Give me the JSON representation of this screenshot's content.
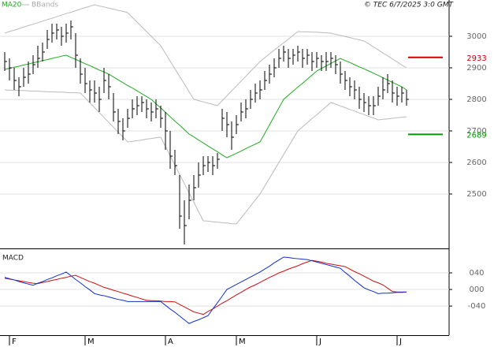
{
  "chart_data": [
    {
      "type": "ohlc",
      "note": "© TEC 6/7/2025 3:0 GMT",
      "categories": [
        null,
        "F",
        null,
        null,
        null,
        null,
        null,
        null,
        null,
        null,
        null,
        null,
        null,
        null,
        null,
        null,
        null,
        "M",
        null,
        null,
        null,
        null,
        null,
        null,
        null,
        null,
        null,
        null,
        null,
        null,
        null,
        null,
        null,
        null,
        "A",
        null,
        null,
        null,
        null,
        null,
        null,
        null,
        null,
        null,
        null,
        null,
        null,
        null,
        null,
        "M",
        null,
        null,
        null,
        null,
        null,
        null,
        null,
        null,
        null,
        null,
        null,
        null,
        null,
        null,
        null,
        null,
        "J",
        null,
        null,
        null,
        null,
        null,
        null,
        null,
        null,
        null,
        null,
        null,
        null,
        null,
        null,
        null,
        null,
        "J",
        null,
        null
      ],
      "high": [
        2950,
        2930,
        2900,
        2870,
        2900,
        2920,
        2940,
        2970,
        2980,
        3020,
        3040,
        3040,
        3030,
        3040,
        3050,
        3010,
        2930,
        2900,
        2860,
        2860,
        2840,
        2900,
        2880,
        2820,
        2770,
        2740,
        2770,
        2800,
        2810,
        2810,
        2800,
        2790,
        2800,
        2780,
        2760,
        2700,
        2640,
        2560,
        2480,
        2530,
        2560,
        2600,
        2620,
        2620,
        2620,
        2630,
        2770,
        2760,
        2730,
        2750,
        2790,
        2800,
        2830,
        2850,
        2860,
        2890,
        2910,
        2930,
        2960,
        2970,
        2960,
        2960,
        2970,
        2960,
        2960,
        2950,
        2950,
        2940,
        2950,
        2950,
        2940,
        2920,
        2890,
        2870,
        2860,
        2840,
        2820,
        2810,
        2810,
        2840,
        2870,
        2880,
        2860,
        2840,
        2840,
        2830
      ],
      "low": [
        2890,
        2860,
        2830,
        2810,
        2840,
        2850,
        2880,
        2900,
        2920,
        2960,
        2980,
        2990,
        2970,
        2980,
        2990,
        2900,
        2850,
        2820,
        2790,
        2790,
        2760,
        2820,
        2800,
        2730,
        2690,
        2670,
        2710,
        2740,
        2750,
        2760,
        2740,
        2730,
        2740,
        2710,
        2640,
        2580,
        2560,
        2390,
        2340,
        2420,
        2480,
        2520,
        2560,
        2570,
        2560,
        2580,
        2700,
        2680,
        2640,
        2690,
        2730,
        2740,
        2770,
        2790,
        2800,
        2830,
        2850,
        2870,
        2900,
        2920,
        2900,
        2910,
        2920,
        2900,
        2910,
        2890,
        2900,
        2890,
        2890,
        2900,
        2880,
        2850,
        2830,
        2810,
        2800,
        2770,
        2760,
        2750,
        2750,
        2780,
        2800,
        2820,
        2790,
        2780,
        2790,
        2780
      ],
      "close": [
        2920,
        2900,
        2860,
        2840,
        2870,
        2880,
        2910,
        2930,
        2950,
        2990,
        3010,
        3020,
        3000,
        3010,
        3030,
        2940,
        2880,
        2850,
        2830,
        2820,
        2800,
        2860,
        2840,
        2760,
        2730,
        2700,
        2740,
        2770,
        2780,
        2790,
        2770,
        2760,
        2770,
        2740,
        2700,
        2620,
        2590,
        2430,
        2400,
        2480,
        2520,
        2560,
        2590,
        2600,
        2590,
        2610,
        2740,
        2720,
        2680,
        2720,
        2760,
        2770,
        2800,
        2820,
        2830,
        2860,
        2880,
        2900,
        2930,
        2950,
        2930,
        2940,
        2950,
        2930,
        2940,
        2920,
        2930,
        2920,
        2920,
        2930,
        2910,
        2880,
        2860,
        2840,
        2830,
        2800,
        2790,
        2780,
        2780,
        2810,
        2830,
        2850,
        2820,
        2810,
        2820,
        2800
      ],
      "color": "#000000",
      "series": [
        {
          "name": "MA20",
          "color": "#22aa22",
          "values": [
            2895,
            2898,
            2902,
            2905,
            2909,
            2912,
            2916,
            2919,
            2923,
            2926,
            2930,
            2933,
            2937,
            2940,
            2933,
            2927,
            2920,
            2913,
            2907,
            2900,
            2893,
            2887,
            2880,
            2871,
            2862,
            2853,
            2844,
            2836,
            2827,
            2818,
            2809,
            2800,
            2786,
            2773,
            2759,
            2745,
            2731,
            2718,
            2704,
            2690,
            2681,
            2671,
            2662,
            2652,
            2643,
            2634,
            2624,
            2615,
            2622,
            2629,
            2636,
            2644,
            2651,
            2658,
            2665,
            2692,
            2719,
            2746,
            2773,
            2800,
            2813,
            2826,
            2839,
            2851,
            2864,
            2877,
            2890,
            2898,
            2906,
            2914,
            2922,
            2930,
            2923,
            2917,
            2910,
            2903,
            2897,
            2890,
            2883,
            2876,
            2869,
            2861,
            2854,
            2847,
            2840,
            2830
          ]
        },
        {
          "name": "BBands",
          "color": "#bbbbbb",
          "upper": [
            3010,
            3015,
            3019,
            3024,
            3029,
            3034,
            3038,
            3043,
            3048,
            3053,
            3057,
            3062,
            3067,
            3072,
            3076,
            3081,
            3086,
            3091,
            3095,
            3100,
            3096,
            3093,
            3089,
            3086,
            3082,
            3079,
            3075,
            3060,
            3045,
            3030,
            3015,
            3000,
            2985,
            2970,
            2946,
            2921,
            2897,
            2873,
            2849,
            2824,
            2800,
            2796,
            2792,
            2788,
            2784,
            2780,
            2796,
            2811,
            2827,
            2842,
            2858,
            2873,
            2889,
            2904,
            2920,
            2932,
            2944,
            2956,
            2968,
            2979,
            2991,
            3003,
            3015,
            3014,
            3014,
            3013,
            3013,
            3012,
            3011,
            3010,
            3006,
            3003,
            2999,
            2996,
            2992,
            2989,
            2985,
            2976,
            2966,
            2957,
            2947,
            2938,
            2928,
            2919,
            2909,
            2900
          ],
          "lower": [
            2830,
            2829,
            2829,
            2828,
            2828,
            2827,
            2826,
            2826,
            2825,
            2824,
            2824,
            2823,
            2823,
            2822,
            2821,
            2821,
            2820,
            2805,
            2789,
            2774,
            2758,
            2743,
            2727,
            2712,
            2696,
            2681,
            2665,
            2667,
            2669,
            2671,
            2674,
            2676,
            2678,
            2680,
            2651,
            2621,
            2592,
            2562,
            2533,
            2503,
            2474,
            2444,
            2415,
            2414,
            2412,
            2411,
            2409,
            2408,
            2406,
            2405,
            2424,
            2443,
            2462,
            2481,
            2500,
            2525,
            2550,
            2575,
            2600,
            2625,
            2650,
            2675,
            2700,
            2713,
            2726,
            2739,
            2751,
            2764,
            2777,
            2790,
            2785,
            2779,
            2774,
            2768,
            2763,
            2757,
            2752,
            2746,
            2741,
            2735,
            2737,
            2738,
            2740,
            2742,
            2743,
            2745
          ]
        }
      ],
      "levels": [
        {
          "value": 2933,
          "color": "#cc0000"
        },
        {
          "value": 2689,
          "color": "#009900"
        }
      ],
      "ylim": [
        2327.5,
        3115
      ],
      "yticks": [
        2500,
        2600,
        2700,
        2800,
        2900,
        3000
      ],
      "grid": true
    },
    {
      "type": "line",
      "title": "MACD",
      "series": [
        {
          "color": "#1030cc",
          "values": [
            29,
            26,
            23,
            19,
            16,
            13,
            10,
            15,
            19,
            24,
            28,
            33,
            37,
            42,
            33,
            24,
            16,
            7,
            -1,
            -10,
            -13,
            -15,
            -18,
            -21,
            -24,
            -26,
            -29,
            -29,
            -29,
            -29,
            -29,
            -29,
            -29,
            -29,
            -38,
            -47,
            -55,
            -64,
            -73,
            -82,
            -77,
            -73,
            -68,
            -63,
            -47,
            -32,
            -16,
            0,
            6,
            12,
            18,
            24,
            30,
            36,
            42,
            49,
            56,
            64,
            71,
            78,
            77,
            75,
            74,
            73,
            72,
            69,
            66,
            63,
            60,
            57,
            54,
            51,
            41,
            32,
            22,
            13,
            4,
            -1,
            -5,
            -10,
            -9,
            -9,
            -8,
            -7,
            -7,
            -6
          ]
        },
        {
          "color": "#cc1010",
          "values": [
            27,
            25,
            23,
            21,
            19,
            17,
            15,
            14,
            17,
            19,
            22,
            24,
            27,
            29,
            32,
            34,
            29,
            24,
            19,
            15,
            10,
            5,
            2,
            -2,
            -5,
            -9,
            -12,
            -16,
            -19,
            -23,
            -26,
            -27,
            -27,
            -28,
            -29,
            -29,
            -30,
            -36,
            -42,
            -48,
            -54,
            -57,
            -60,
            -53,
            -47,
            -40,
            -33,
            -27,
            -20,
            -13,
            -7,
            0,
            6,
            11,
            17,
            23,
            29,
            34,
            40,
            44,
            49,
            53,
            57,
            62,
            66,
            70,
            68,
            66,
            63,
            61,
            59,
            57,
            55,
            49,
            43,
            38,
            32,
            26,
            20,
            16,
            11,
            3,
            -5,
            -6,
            -6,
            -6
          ]
        }
      ],
      "ylim": [
        -110,
        95
      ],
      "yticks": [
        {
          "value": 40,
          "label": "040"
        },
        {
          "value": 0,
          "label": "000"
        },
        {
          "value": -40,
          "label": "-040"
        }
      ],
      "grid": true
    }
  ]
}
